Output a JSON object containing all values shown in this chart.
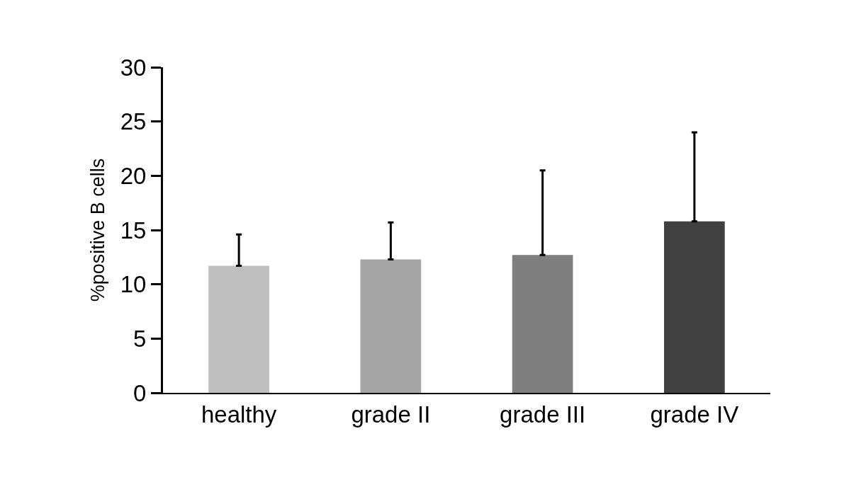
{
  "chart_data": {
    "type": "bar",
    "ylabel": "%positive B cells",
    "categories": [
      "healthy",
      "grade II",
      "grade III",
      "grade IV"
    ],
    "values": [
      11.7,
      12.3,
      12.7,
      15.8
    ],
    "colors": [
      "#bfbfbf",
      "#a6a6a6",
      "#7f7f7f",
      "#404040"
    ],
    "errors": [
      [
        11.7,
        14.6
      ],
      [
        12.3,
        15.7
      ],
      [
        12.7,
        20.5
      ],
      [
        15.8,
        24.0
      ]
    ],
    "ylim": [
      0,
      30
    ],
    "yticks": [
      0,
      5,
      10,
      15,
      20,
      25,
      30
    ]
  }
}
